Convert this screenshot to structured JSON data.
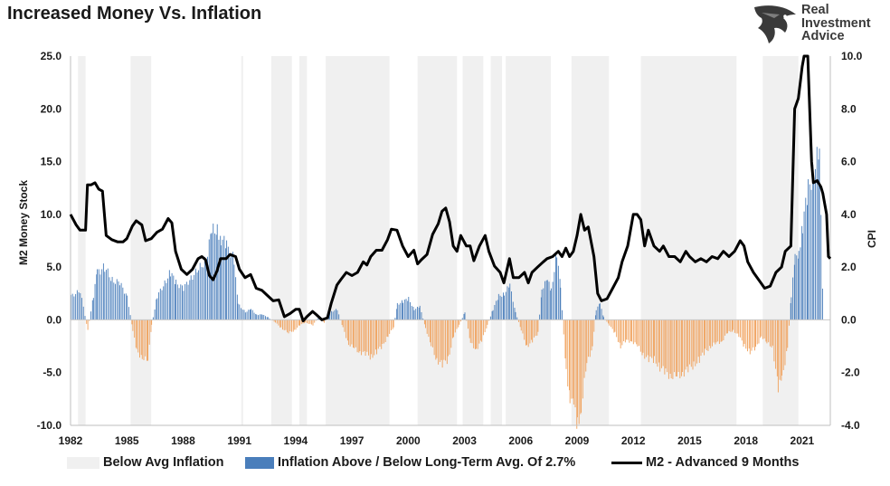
{
  "title": "Increased Money Vs. Inflation",
  "logo": {
    "line1": "Real",
    "line2": "Investment",
    "line3": "Advice",
    "icon": "eagle-head-icon"
  },
  "colors": {
    "shade": "#f0f0f0",
    "bar_above": "#4a7ebb",
    "bar_below": "#f0a05a",
    "line": "#000000"
  },
  "chart_data": {
    "type": "bar",
    "x_range": [
      1982,
      2022.5
    ],
    "x_ticks": [
      "1982",
      "1985",
      "1988",
      "1991",
      "1994",
      "1997",
      "2000",
      "2003",
      "2006",
      "2009",
      "2012",
      "2015",
      "2018",
      "2021"
    ],
    "left_axis": {
      "label": "M2 Money Stock",
      "range": [
        -10,
        25
      ],
      "ticks": [
        "-10.0",
        "-5.0",
        "0.0",
        "5.0",
        "10.0",
        "15.0",
        "20.0",
        "25.0"
      ]
    },
    "right_axis": {
      "label": "CPI",
      "range": [
        -4,
        10
      ],
      "ticks": [
        "-4.0",
        "-2.0",
        "0.0",
        "2.0",
        "4.0",
        "6.0",
        "8.0",
        "10.0"
      ]
    },
    "grid": false,
    "legend_position": "bottom",
    "legend": [
      "Below Avg Inflation",
      "Inflation Above / Below Long-Term Avg. Of 2.7%",
      "M2 - Advanced 9 Months"
    ],
    "below_avg_periods": [
      [
        1982.4,
        1982.8
      ],
      [
        1985.2,
        1986.3
      ],
      [
        1991.1,
        1991.2
      ],
      [
        1992.7,
        1993.8
      ],
      [
        1994.2,
        1994.6
      ],
      [
        1995.6,
        1999.0
      ],
      [
        2000.5,
        2002.6
      ],
      [
        2002.9,
        2004.0
      ],
      [
        2004.4,
        2005.0
      ],
      [
        2005.2,
        2007.6
      ],
      [
        2008.7,
        2010.7
      ],
      [
        2012.4,
        2017.5
      ],
      [
        2018.9,
        2020.8
      ]
    ],
    "inflation_cpi_deviation": [
      [
        1982.0,
        0.9
      ],
      [
        1982.5,
        1.1
      ],
      [
        1982.9,
        -0.4
      ],
      [
        1983.2,
        0.9
      ],
      [
        1983.4,
        1.8
      ],
      [
        1983.8,
        2.0
      ],
      [
        1984.2,
        1.5
      ],
      [
        1984.6,
        1.4
      ],
      [
        1985.0,
        0.9
      ],
      [
        1985.3,
        -0.4
      ],
      [
        1985.5,
        -1.2
      ],
      [
        1985.8,
        -1.4
      ],
      [
        1986.1,
        -1.6
      ],
      [
        1986.3,
        -0.2
      ],
      [
        1986.6,
        0.9
      ],
      [
        1987.0,
        1.4
      ],
      [
        1987.3,
        1.8
      ],
      [
        1987.6,
        1.4
      ],
      [
        1988.0,
        1.2
      ],
      [
        1988.4,
        1.6
      ],
      [
        1988.8,
        1.9
      ],
      [
        1989.2,
        2.3
      ],
      [
        1989.5,
        3.3
      ],
      [
        1989.8,
        3.5
      ],
      [
        1990.0,
        3.1
      ],
      [
        1990.3,
        2.8
      ],
      [
        1990.7,
        2.3
      ],
      [
        1990.9,
        0.6
      ],
      [
        1991.3,
        0.3
      ],
      [
        1991.6,
        0.4
      ],
      [
        1991.9,
        0.2
      ],
      [
        1992.2,
        0.2
      ],
      [
        1992.5,
        0.1
      ],
      [
        1992.9,
        -0.1
      ],
      [
        1993.2,
        -0.3
      ],
      [
        1993.6,
        -0.5
      ],
      [
        1993.9,
        -0.4
      ],
      [
        1994.2,
        -0.2
      ],
      [
        1994.5,
        -0.1
      ],
      [
        1994.9,
        -0.2
      ],
      [
        1995.2,
        0.1
      ],
      [
        1995.5,
        -0.1
      ],
      [
        1995.8,
        0.3
      ],
      [
        1996.2,
        0.4
      ],
      [
        1996.5,
        -0.3
      ],
      [
        1996.8,
        -0.9
      ],
      [
        1997.1,
        -1.1
      ],
      [
        1997.4,
        -1.2
      ],
      [
        1997.7,
        -1.3
      ],
      [
        1998.0,
        -1.4
      ],
      [
        1998.3,
        -1.2
      ],
      [
        1998.6,
        -1.0
      ],
      [
        1998.9,
        -0.6
      ],
      [
        1999.2,
        -0.3
      ],
      [
        1999.4,
        0.6
      ],
      [
        1999.7,
        0.7
      ],
      [
        2000.0,
        0.8
      ],
      [
        2000.3,
        0.4
      ],
      [
        2000.6,
        0.5
      ],
      [
        2000.9,
        -0.3
      ],
      [
        2001.2,
        -1.0
      ],
      [
        2001.5,
        -1.5
      ],
      [
        2001.8,
        -1.7
      ],
      [
        2002.1,
        -1.5
      ],
      [
        2002.4,
        -0.6
      ],
      [
        2002.7,
        -0.2
      ],
      [
        2003.0,
        0.3
      ],
      [
        2003.3,
        -0.9
      ],
      [
        2003.6,
        -1.1
      ],
      [
        2003.9,
        -0.8
      ],
      [
        2004.2,
        -0.2
      ],
      [
        2004.5,
        0.4
      ],
      [
        2004.8,
        0.9
      ],
      [
        2005.1,
        1.0
      ],
      [
        2005.4,
        1.3
      ],
      [
        2005.7,
        0.3
      ],
      [
        2006.0,
        -0.4
      ],
      [
        2006.3,
        -1.0
      ],
      [
        2006.6,
        -0.8
      ],
      [
        2006.9,
        -0.5
      ],
      [
        2007.1,
        1.2
      ],
      [
        2007.4,
        1.5
      ],
      [
        2007.6,
        1.1
      ],
      [
        2007.9,
        2.6
      ],
      [
        2008.1,
        1.2
      ],
      [
        2008.4,
        -1.9
      ],
      [
        2008.6,
        -2.9
      ],
      [
        2008.8,
        -3.3
      ],
      [
        2009.0,
        -4.0
      ],
      [
        2009.2,
        -3.3
      ],
      [
        2009.5,
        -1.7
      ],
      [
        2009.8,
        -1.0
      ],
      [
        2010.0,
        0.4
      ],
      [
        2010.2,
        0.6
      ],
      [
        2010.4,
        0.1
      ],
      [
        2010.7,
        -0.2
      ],
      [
        2011.0,
        -0.5
      ],
      [
        2011.3,
        -1.0
      ],
      [
        2011.6,
        -0.8
      ],
      [
        2011.9,
        -0.8
      ],
      [
        2012.2,
        -1.0
      ],
      [
        2012.5,
        -1.3
      ],
      [
        2012.8,
        -1.5
      ],
      [
        2013.1,
        -1.5
      ],
      [
        2013.4,
        -1.8
      ],
      [
        2013.7,
        -2.0
      ],
      [
        2014.0,
        -2.1
      ],
      [
        2014.3,
        -2.2
      ],
      [
        2014.6,
        -2.0
      ],
      [
        2014.9,
        -1.9
      ],
      [
        2015.2,
        -1.7
      ],
      [
        2015.5,
        -1.5
      ],
      [
        2015.8,
        -1.2
      ],
      [
        2016.1,
        -1.0
      ],
      [
        2016.4,
        -0.9
      ],
      [
        2016.7,
        -0.8
      ],
      [
        2017.0,
        -0.5
      ],
      [
        2017.3,
        -0.4
      ],
      [
        2017.6,
        -0.6
      ],
      [
        2017.9,
        -1.0
      ],
      [
        2018.2,
        -1.2
      ],
      [
        2018.5,
        -1.1
      ],
      [
        2018.8,
        -0.6
      ],
      [
        2019.1,
        -0.9
      ],
      [
        2019.4,
        -1.0
      ],
      [
        2019.7,
        -2.6
      ],
      [
        2019.9,
        -2.3
      ],
      [
        2020.2,
        -1.0
      ],
      [
        2020.4,
        0.9
      ],
      [
        2020.6,
        2.3
      ],
      [
        2020.8,
        2.6
      ],
      [
        2021.0,
        3.6
      ],
      [
        2021.3,
        4.9
      ],
      [
        2021.6,
        5.8
      ],
      [
        2021.9,
        6.2
      ],
      [
        2022.1,
        0.3
      ]
    ],
    "m2_advanced_9_months": [
      [
        1982.0,
        10.0
      ],
      [
        1982.3,
        9.0
      ],
      [
        1982.5,
        8.5
      ],
      [
        1982.8,
        8.5
      ],
      [
        1982.9,
        12.8
      ],
      [
        1983.1,
        12.8
      ],
      [
        1983.3,
        13.0
      ],
      [
        1983.5,
        12.4
      ],
      [
        1983.7,
        12.2
      ],
      [
        1983.9,
        8.0
      ],
      [
        1984.2,
        7.6
      ],
      [
        1984.5,
        7.4
      ],
      [
        1984.8,
        7.4
      ],
      [
        1985.0,
        7.7
      ],
      [
        1985.3,
        8.9
      ],
      [
        1985.5,
        9.4
      ],
      [
        1985.8,
        9.0
      ],
      [
        1986.0,
        7.5
      ],
      [
        1986.3,
        7.7
      ],
      [
        1986.6,
        8.3
      ],
      [
        1986.9,
        8.6
      ],
      [
        1987.2,
        9.6
      ],
      [
        1987.4,
        9.2
      ],
      [
        1987.6,
        6.5
      ],
      [
        1987.9,
        4.8
      ],
      [
        1988.2,
        4.3
      ],
      [
        1988.5,
        4.8
      ],
      [
        1988.8,
        5.8
      ],
      [
        1989.0,
        6.0
      ],
      [
        1989.2,
        5.7
      ],
      [
        1989.4,
        4.2
      ],
      [
        1989.6,
        3.8
      ],
      [
        1989.8,
        4.6
      ],
      [
        1990.0,
        5.8
      ],
      [
        1990.3,
        5.8
      ],
      [
        1990.5,
        6.2
      ],
      [
        1990.8,
        6.0
      ],
      [
        1991.0,
        4.8
      ],
      [
        1991.3,
        4.0
      ],
      [
        1991.6,
        4.3
      ],
      [
        1991.9,
        3.0
      ],
      [
        1992.2,
        2.8
      ],
      [
        1992.5,
        2.3
      ],
      [
        1992.8,
        1.8
      ],
      [
        1993.1,
        1.9
      ],
      [
        1993.4,
        0.3
      ],
      [
        1993.7,
        0.6
      ],
      [
        1994.0,
        1.0
      ],
      [
        1994.2,
        1.0
      ],
      [
        1994.4,
        -0.1
      ],
      [
        1994.6,
        0.3
      ],
      [
        1994.9,
        0.8
      ],
      [
        1995.1,
        0.5
      ],
      [
        1995.4,
        0.0
      ],
      [
        1995.7,
        0.2
      ],
      [
        1995.9,
        1.6
      ],
      [
        1996.2,
        3.3
      ],
      [
        1996.4,
        3.8
      ],
      [
        1996.7,
        4.5
      ],
      [
        1997.0,
        4.2
      ],
      [
        1997.3,
        4.5
      ],
      [
        1997.6,
        5.5
      ],
      [
        1997.8,
        5.2
      ],
      [
        1998.0,
        6.0
      ],
      [
        1998.3,
        6.6
      ],
      [
        1998.6,
        6.6
      ],
      [
        1998.9,
        7.6
      ],
      [
        1999.1,
        8.6
      ],
      [
        1999.4,
        8.5
      ],
      [
        1999.7,
        7.0
      ],
      [
        2000.0,
        6.0
      ],
      [
        2000.3,
        6.6
      ],
      [
        2000.5,
        5.3
      ],
      [
        2000.7,
        5.7
      ],
      [
        2001.0,
        6.2
      ],
      [
        2001.3,
        8.1
      ],
      [
        2001.6,
        9.1
      ],
      [
        2001.8,
        10.3
      ],
      [
        2002.0,
        10.6
      ],
      [
        2002.2,
        9.3
      ],
      [
        2002.4,
        7.0
      ],
      [
        2002.6,
        6.5
      ],
      [
        2002.8,
        8.0
      ],
      [
        2003.1,
        7.0
      ],
      [
        2003.3,
        7.0
      ],
      [
        2003.5,
        5.6
      ],
      [
        2003.8,
        7.0
      ],
      [
        2004.1,
        8.0
      ],
      [
        2004.3,
        6.5
      ],
      [
        2004.6,
        5.1
      ],
      [
        2004.9,
        4.5
      ],
      [
        2005.1,
        3.5
      ],
      [
        2005.4,
        5.8
      ],
      [
        2005.6,
        4.0
      ],
      [
        2005.9,
        4.0
      ],
      [
        2006.2,
        4.5
      ],
      [
        2006.4,
        3.5
      ],
      [
        2006.6,
        4.5
      ],
      [
        2006.9,
        5.0
      ],
      [
        2007.2,
        5.5
      ],
      [
        2007.4,
        5.8
      ],
      [
        2007.7,
        6.0
      ],
      [
        2008.0,
        6.5
      ],
      [
        2008.2,
        6.0
      ],
      [
        2008.4,
        6.8
      ],
      [
        2008.6,
        6.0
      ],
      [
        2008.8,
        6.5
      ],
      [
        2009.0,
        8.0
      ],
      [
        2009.2,
        10.0
      ],
      [
        2009.4,
        8.5
      ],
      [
        2009.6,
        8.8
      ],
      [
        2009.9,
        6.0
      ],
      [
        2010.1,
        2.5
      ],
      [
        2010.3,
        1.8
      ],
      [
        2010.6,
        2.0
      ],
      [
        2010.9,
        3.0
      ],
      [
        2011.2,
        4.0
      ],
      [
        2011.4,
        5.5
      ],
      [
        2011.7,
        7.0
      ],
      [
        2012.0,
        10.0
      ],
      [
        2012.2,
        10.0
      ],
      [
        2012.4,
        9.5
      ],
      [
        2012.6,
        7.0
      ],
      [
        2012.8,
        8.5
      ],
      [
        2013.1,
        7.0
      ],
      [
        2013.4,
        6.5
      ],
      [
        2013.6,
        7.0
      ],
      [
        2013.9,
        6.0
      ],
      [
        2014.2,
        6.0
      ],
      [
        2014.5,
        5.5
      ],
      [
        2014.8,
        6.5
      ],
      [
        2015.0,
        6.0
      ],
      [
        2015.3,
        5.5
      ],
      [
        2015.6,
        5.8
      ],
      [
        2015.9,
        5.5
      ],
      [
        2016.2,
        6.0
      ],
      [
        2016.5,
        5.8
      ],
      [
        2016.8,
        6.5
      ],
      [
        2017.1,
        6.0
      ],
      [
        2017.4,
        6.5
      ],
      [
        2017.7,
        7.5
      ],
      [
        2017.9,
        7.0
      ],
      [
        2018.1,
        5.5
      ],
      [
        2018.4,
        4.5
      ],
      [
        2018.6,
        4.0
      ],
      [
        2018.8,
        3.5
      ],
      [
        2019.0,
        3.0
      ],
      [
        2019.3,
        3.2
      ],
      [
        2019.6,
        4.5
      ],
      [
        2019.9,
        5.0
      ],
      [
        2020.1,
        6.5
      ],
      [
        2020.4,
        7.0
      ],
      [
        2020.6,
        20.0
      ],
      [
        2020.8,
        21.0
      ],
      [
        2021.0,
        24.0
      ],
      [
        2021.1,
        26.0
      ],
      [
        2021.3,
        25.0
      ],
      [
        2021.5,
        15.0
      ],
      [
        2021.6,
        13.0
      ],
      [
        2021.8,
        13.2
      ],
      [
        2022.0,
        12.6
      ],
      [
        2022.1,
        12.0
      ],
      [
        2022.3,
        10.0
      ],
      [
        2022.4,
        6.0
      ],
      [
        2022.5,
        5.8
      ]
    ]
  }
}
